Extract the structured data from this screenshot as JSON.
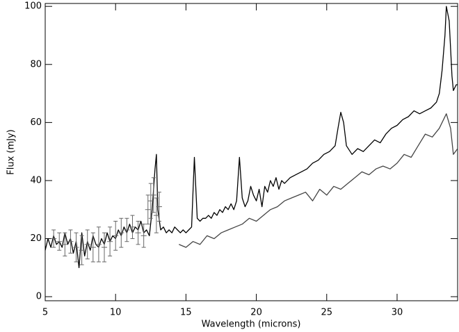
{
  "chart_data": {
    "type": "line",
    "x_label": "Wavelength (microns)",
    "y_label": "Flux (mJy)",
    "xlim": [
      5,
      34.3
    ],
    "ylim": [
      -1.4,
      101
    ],
    "xticks": [
      5,
      10,
      15,
      20,
      25,
      30
    ],
    "yticks": [
      0,
      20,
      40,
      60,
      80,
      100
    ],
    "grid": false,
    "series": [
      {
        "color": "#000000",
        "x": [
          5.0,
          5.2,
          5.4,
          5.6,
          5.8,
          6.0,
          6.2,
          6.4,
          6.6,
          6.8,
          7.0,
          7.2,
          7.4,
          7.6,
          7.8,
          8.0,
          8.2,
          8.4,
          8.6,
          8.8,
          9.0,
          9.2,
          9.4,
          9.6,
          9.8,
          10.0,
          10.2,
          10.4,
          10.6,
          10.8,
          11.0,
          11.2,
          11.4,
          11.6,
          11.8,
          12.0,
          12.2,
          12.4,
          12.6,
          12.8,
          12.9,
          13.0,
          13.2,
          13.4,
          13.6,
          13.8,
          14.0,
          14.2,
          14.4,
          14.6,
          14.8,
          15.0,
          15.2,
          15.4,
          15.6,
          15.8,
          16.0,
          16.2,
          16.4,
          16.6,
          16.8,
          17.0,
          17.2,
          17.4,
          17.6,
          17.8,
          18.0,
          18.2,
          18.4,
          18.6,
          18.8,
          19.0,
          19.2,
          19.4,
          19.6,
          19.8,
          20.0,
          20.2,
          20.4,
          20.6,
          20.8,
          21.0,
          21.2,
          21.4,
          21.6,
          21.8,
          22.0,
          22.4,
          22.8,
          23.2,
          23.6,
          24.0,
          24.4,
          24.8,
          25.2,
          25.6,
          25.8,
          26.0,
          26.2,
          26.4,
          26.8,
          27.2,
          27.6,
          28.0,
          28.4,
          28.8,
          29.2,
          29.6,
          30.0,
          30.4,
          30.8,
          31.2,
          31.6,
          32.0,
          32.4,
          32.8,
          33.0,
          33.2,
          33.4,
          33.5,
          33.7,
          33.9,
          34.0,
          34.2,
          34.3
        ],
        "values": [
          16,
          20,
          17,
          21,
          18,
          19,
          17,
          22,
          18,
          20,
          15,
          19,
          10,
          22,
          14,
          19,
          16,
          21,
          18,
          17,
          20,
          18,
          22,
          19,
          21,
          20,
          23,
          21,
          24,
          22,
          25,
          22,
          24,
          23,
          26,
          22,
          23,
          21,
          30,
          44,
          49,
          30,
          23,
          24,
          22,
          23,
          22,
          24,
          23,
          22,
          23,
          22,
          23,
          24,
          48,
          27,
          26,
          27,
          27,
          28,
          27,
          29,
          28,
          30,
          29,
          31,
          30,
          32,
          30,
          33,
          48,
          34,
          31,
          33,
          38,
          35,
          33,
          37,
          31,
          38,
          36,
          40,
          38,
          41,
          37,
          40,
          39,
          41,
          42,
          43,
          44,
          46,
          47,
          49,
          50,
          52,
          58,
          63.5,
          60,
          52,
          49,
          51,
          50,
          52,
          54,
          53,
          56,
          58,
          59,
          61,
          62,
          64,
          63,
          64,
          65,
          67,
          70,
          78,
          90,
          100,
          95,
          76,
          71,
          73,
          73
        ]
      },
      {
        "color": "#444444",
        "x": [
          14.5,
          15.0,
          15.5,
          16.0,
          16.5,
          17.0,
          17.5,
          18.0,
          18.5,
          19.0,
          19.5,
          20.0,
          20.5,
          21.0,
          21.5,
          22.0,
          22.5,
          23.0,
          23.5,
          24.0,
          24.5,
          25.0,
          25.5,
          26.0,
          26.5,
          27.0,
          27.5,
          28.0,
          28.5,
          29.0,
          29.5,
          30.0,
          30.5,
          31.0,
          31.5,
          32.0,
          32.5,
          33.0,
          33.5,
          33.8,
          34.0,
          34.3
        ],
        "values": [
          18,
          17,
          19,
          18,
          21,
          20,
          22,
          23,
          24,
          25,
          27,
          26,
          28,
          30,
          31,
          33,
          34,
          35,
          36,
          33,
          37,
          35,
          38,
          37,
          39,
          41,
          43,
          42,
          44,
          45,
          44,
          46,
          49,
          48,
          52,
          56,
          55,
          58,
          63,
          58,
          49,
          51
        ]
      },
      {
        "color": "#666666",
        "style": "errorbar",
        "x": [
          5.6,
          6.0,
          6.4,
          6.8,
          7.2,
          7.6,
          8.0,
          8.4,
          8.8,
          9.2,
          9.6,
          10.0,
          10.4,
          10.8,
          11.2,
          11.6,
          12.0,
          12.3,
          12.5,
          12.7,
          12.9,
          13.1
        ],
        "values": [
          20,
          19,
          18,
          19,
          17,
          16,
          18,
          17,
          18,
          17,
          19,
          21,
          22,
          23,
          24,
          22,
          21,
          30,
          33,
          35,
          28,
          31
        ],
        "yerr": [
          3,
          3,
          4,
          4,
          5,
          5,
          5,
          5,
          6,
          5,
          5,
          5,
          5,
          4,
          4,
          4,
          4,
          5,
          6,
          6,
          6,
          5
        ],
        "xerr": [
          0.2,
          0.2,
          0.2,
          0.2,
          0.2,
          0.2,
          0.2,
          0.2,
          0.2,
          0.2,
          0.2,
          0.2,
          0.2,
          0.2,
          0.2,
          0.2,
          0.2,
          0.2,
          0.2,
          0.2,
          0.2,
          0.2
        ]
      }
    ]
  }
}
